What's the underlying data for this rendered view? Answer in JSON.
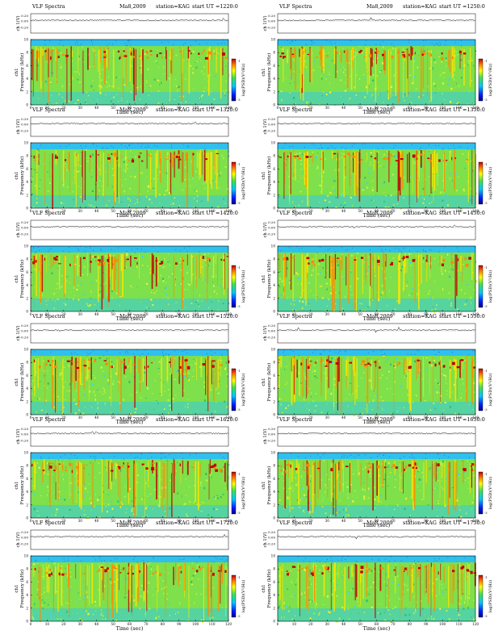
{
  "page": {
    "colors": {
      "background": "#ffffff",
      "spectrogram_base": "#7ee04a",
      "low_band": "#33c8e8",
      "top_band": "#2fc0ee",
      "hot": "#ff8a00",
      "max": "#c00000"
    }
  },
  "chart_data": [
    {
      "type": "heatmap",
      "header": {
        "title": "VLF Spectra",
        "date": "Ma8,2009",
        "station": "station=KAG",
        "start": "start  UT  =1220:0"
      },
      "waveform_ylabel": "ch 1(V)",
      "waveform_ticks": [
        "0.20",
        "0.00",
        "-0.20"
      ],
      "ylabel": "Frequency  (kHz)",
      "ylabel_ch": "ch1",
      "xlabel": "Time  (sec)",
      "xticks": [
        "0",
        "10",
        "20",
        "30",
        "40",
        "50",
        "60",
        "70",
        "80",
        "90",
        "100",
        "110",
        "120"
      ],
      "yticks": [
        "0",
        "2",
        "4",
        "6",
        "8",
        "10"
      ],
      "xlim": [
        0,
        120
      ],
      "ylim": [
        0,
        10
      ],
      "colorbar_label": "log(PSD)(V²/Hz)",
      "colorbar_ticks": [
        "-1",
        "-3"
      ]
    },
    {
      "type": "heatmap",
      "header": {
        "title": "VLF Spectra",
        "date": "Ma8,2009",
        "station": "station=KAG",
        "start": "start  UT  =1250:0"
      },
      "waveform_ylabel": "ch 1(V)",
      "waveform_ticks": [
        "0.20",
        "0.00",
        "-0.20"
      ],
      "ylabel": "Frequency  (kHz)",
      "ylabel_ch": "ch1",
      "xlabel": "Time  (sec)",
      "xticks": [
        "0",
        "10",
        "20",
        "30",
        "40",
        "50",
        "60",
        "70",
        "80",
        "90",
        "100",
        "110",
        "120"
      ],
      "yticks": [
        "0",
        "2",
        "4",
        "6",
        "8",
        "10"
      ],
      "xlim": [
        0,
        120
      ],
      "ylim": [
        0,
        10
      ],
      "colorbar_label": "log(PSD)(V²/Hz)",
      "colorbar_ticks": [
        "-1",
        "-3"
      ]
    },
    {
      "type": "heatmap",
      "header": {
        "title": "VLF Spectra",
        "date": "Ma8,2009",
        "station": "station=KAG",
        "start": "start  UT  =1320:0"
      },
      "waveform_ylabel": "ch 1(V)",
      "waveform_ticks": [
        "0.20",
        "0.00",
        "-0.20"
      ],
      "ylabel": "Frequency  (kHz)",
      "ylabel_ch": "ch1",
      "xlabel": "Time  (sec)",
      "xticks": [
        "0",
        "10",
        "20",
        "30",
        "40",
        "50",
        "60",
        "70",
        "80",
        "90",
        "100",
        "110",
        "120"
      ],
      "yticks": [
        "0",
        "2",
        "4",
        "6",
        "8",
        "10"
      ],
      "xlim": [
        0,
        120
      ],
      "ylim": [
        0,
        10
      ],
      "colorbar_label": "log(PSD)(V²/Hz)",
      "colorbar_ticks": [
        "-1",
        "-3"
      ]
    },
    {
      "type": "heatmap",
      "header": {
        "title": "VLF Spectra",
        "date": "Ma8,2009",
        "station": "station=KAG",
        "start": "start  UT  =1350:0"
      },
      "waveform_ylabel": "ch 1(V)",
      "waveform_ticks": [
        "0.20",
        "0.00",
        "-0.20"
      ],
      "ylabel": "Frequency  (kHz)",
      "ylabel_ch": "ch1",
      "xlabel": "Time  (sec)",
      "xticks": [
        "0",
        "10",
        "20",
        "30",
        "40",
        "50",
        "60",
        "70",
        "80",
        "90",
        "100",
        "110",
        "120"
      ],
      "yticks": [
        "0",
        "2",
        "4",
        "6",
        "8",
        "10"
      ],
      "xlim": [
        0,
        120
      ],
      "ylim": [
        0,
        10
      ],
      "colorbar_label": "log(PSD)(V²/Hz)",
      "colorbar_ticks": [
        "-1",
        "-3"
      ]
    },
    {
      "type": "heatmap",
      "header": {
        "title": "VLF Spectra",
        "date": "Ma8,2009",
        "station": "station=KAG",
        "start": "start  UT  =1420:0"
      },
      "waveform_ylabel": "ch 1(V)",
      "waveform_ticks": [
        "0.20",
        "0.00",
        "-0.20"
      ],
      "ylabel": "Frequency  (kHz)",
      "ylabel_ch": "ch1",
      "xlabel": "Time  (sec)",
      "xticks": [
        "0",
        "10",
        "20",
        "30",
        "40",
        "50",
        "60",
        "70",
        "80",
        "90",
        "100",
        "110",
        "120"
      ],
      "yticks": [
        "0",
        "2",
        "4",
        "6",
        "8",
        "10"
      ],
      "xlim": [
        0,
        120
      ],
      "ylim": [
        0,
        10
      ],
      "colorbar_label": "log(PSD)(V²/Hz)",
      "colorbar_ticks": [
        "-1",
        "-3"
      ]
    },
    {
      "type": "heatmap",
      "header": {
        "title": "VLF Spectra",
        "date": "Ma8,2009",
        "station": "station=KAG",
        "start": "start  UT  =1450:0"
      },
      "waveform_ylabel": "ch 1(V)",
      "waveform_ticks": [
        "0.20",
        "0.00",
        "-0.20"
      ],
      "ylabel": "Frequency  (kHz)",
      "ylabel_ch": "ch1",
      "xlabel": "Time  (sec)",
      "xticks": [
        "0",
        "10",
        "20",
        "30",
        "40",
        "50",
        "60",
        "70",
        "80",
        "90",
        "100",
        "110",
        "120"
      ],
      "yticks": [
        "0",
        "2",
        "4",
        "6",
        "8",
        "10"
      ],
      "xlim": [
        0,
        120
      ],
      "ylim": [
        0,
        10
      ],
      "colorbar_label": "log(PSD)(V²/Hz)",
      "colorbar_ticks": [
        "-1",
        "-3"
      ]
    },
    {
      "type": "heatmap",
      "header": {
        "title": "VLF Spectra",
        "date": "Ma8,2009",
        "station": "station=KAG",
        "start": "start  UT  =1520:0"
      },
      "waveform_ylabel": "ch 1(V)",
      "waveform_ticks": [
        "0.20",
        "0.00",
        "-0.20"
      ],
      "ylabel": "Frequency  (kHz)",
      "ylabel_ch": "ch1",
      "xlabel": "Time  (sec)",
      "xticks": [
        "0",
        "10",
        "20",
        "30",
        "40",
        "50",
        "60",
        "70",
        "80",
        "90",
        "100",
        "110",
        "120"
      ],
      "yticks": [
        "0",
        "2",
        "4",
        "6",
        "8",
        "10"
      ],
      "xlim": [
        0,
        120
      ],
      "ylim": [
        0,
        10
      ],
      "colorbar_label": "log(PSD)(V²/Hz)",
      "colorbar_ticks": [
        "-1",
        "-3"
      ]
    },
    {
      "type": "heatmap",
      "header": {
        "title": "VLF Spectra",
        "date": "Ma8,2009",
        "station": "station=KAG",
        "start": "start  UT  =1550:0"
      },
      "waveform_ylabel": "ch 1(V)",
      "waveform_ticks": [
        "0.20",
        "0.00",
        "-0.20"
      ],
      "ylabel": "Frequency  (kHz)",
      "ylabel_ch": "ch1",
      "xlabel": "Time  (sec)",
      "xticks": [
        "0",
        "10",
        "20",
        "30",
        "40",
        "50",
        "60",
        "70",
        "80",
        "90",
        "100",
        "110",
        "120"
      ],
      "yticks": [
        "0",
        "2",
        "4",
        "6",
        "8",
        "10"
      ],
      "xlim": [
        0,
        120
      ],
      "ylim": [
        0,
        10
      ],
      "colorbar_label": "log(PSD)(V²/Hz)",
      "colorbar_ticks": [
        "-1",
        "-3"
      ]
    },
    {
      "type": "heatmap",
      "header": {
        "title": "VLF Spectra",
        "date": "Ma8,2009",
        "station": "station=KAG",
        "start": "start  UT  =1620:0"
      },
      "waveform_ylabel": "ch 1(V)",
      "waveform_ticks": [
        "0.20",
        "0.00",
        "-0.20"
      ],
      "ylabel": "Frequency  (kHz)",
      "ylabel_ch": "ch1",
      "xlabel": "Time  (sec)",
      "xticks": [
        "0",
        "10",
        "20",
        "30",
        "40",
        "50",
        "60",
        "70",
        "80",
        "90",
        "100",
        "110",
        "120"
      ],
      "yticks": [
        "0",
        "2",
        "4",
        "6",
        "8",
        "10"
      ],
      "xlim": [
        0,
        120
      ],
      "ylim": [
        0,
        10
      ],
      "colorbar_label": "log(PSD)(V²/Hz)",
      "colorbar_ticks": [
        "-1",
        "-3"
      ]
    },
    {
      "type": "heatmap",
      "header": {
        "title": "VLF Spectra",
        "date": "Ma8,2009",
        "station": "station=KAG",
        "start": "start  UT  =1650:0"
      },
      "waveform_ylabel": "ch 1(V)",
      "waveform_ticks": [
        "0.20",
        "0.00",
        "-0.20"
      ],
      "ylabel": "Frequency  (kHz)",
      "ylabel_ch": "ch1",
      "xlabel": "Time  (sec)",
      "xticks": [
        "0",
        "10",
        "20",
        "30",
        "40",
        "50",
        "60",
        "70",
        "80",
        "90",
        "100",
        "110",
        "120"
      ],
      "yticks": [
        "0",
        "2",
        "4",
        "6",
        "8",
        "10"
      ],
      "xlim": [
        0,
        120
      ],
      "ylim": [
        0,
        10
      ],
      "colorbar_label": "log(PSD)(V²/Hz)",
      "colorbar_ticks": [
        "-1",
        "-3"
      ]
    },
    {
      "type": "heatmap",
      "header": {
        "title": "VLF Spectra",
        "date": "Ma8,2009",
        "station": "station=KAG",
        "start": "start  UT  =1720:0"
      },
      "waveform_ylabel": "ch 1(V)",
      "waveform_ticks": [
        "0.20",
        "0.00",
        "-0.20"
      ],
      "ylabel": "Frequency  (kHz)",
      "ylabel_ch": "ch1",
      "xlabel": "Time  (sec)",
      "xticks": [
        "0",
        "10",
        "20",
        "30",
        "40",
        "50",
        "60",
        "70",
        "80",
        "90",
        "100",
        "110",
        "120"
      ],
      "yticks": [
        "0",
        "2",
        "4",
        "6",
        "8",
        "10"
      ],
      "xlim": [
        0,
        120
      ],
      "ylim": [
        0,
        10
      ],
      "colorbar_label": "log(PSD)(V²/Hz)",
      "colorbar_ticks": [
        "-1",
        "-3"
      ]
    },
    {
      "type": "heatmap",
      "header": {
        "title": "VLF Spectra",
        "date": "Ma8,2009",
        "station": "station=KAG",
        "start": "start  UT  =1750:0"
      },
      "waveform_ylabel": "ch 1(V)",
      "waveform_ticks": [
        "0.20",
        "0.00",
        "-0.20"
      ],
      "ylabel": "Frequency  (kHz)",
      "ylabel_ch": "ch1",
      "xlabel": "Time  (sec)",
      "xticks": [
        "0",
        "10",
        "20",
        "30",
        "40",
        "50",
        "60",
        "70",
        "80",
        "90",
        "100",
        "110",
        "120"
      ],
      "yticks": [
        "0",
        "2",
        "4",
        "6",
        "8",
        "10"
      ],
      "xlim": [
        0,
        120
      ],
      "ylim": [
        0,
        10
      ],
      "colorbar_label": "log(PSD)(V²/Hz)",
      "colorbar_ticks": [
        "-1",
        "-3"
      ]
    }
  ]
}
